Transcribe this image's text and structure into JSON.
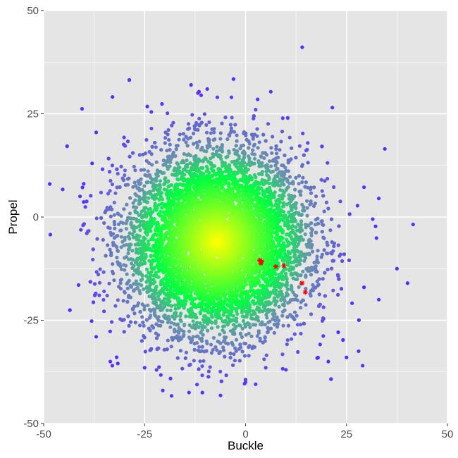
{
  "chart_data": {
    "type": "scatter",
    "title": "",
    "xlabel": "Buckle",
    "ylabel": "Propel",
    "xlim": [
      -50,
      50
    ],
    "ylim": [
      -50,
      50
    ],
    "x_ticks": [
      "-50",
      "-25",
      "0",
      "25",
      "50"
    ],
    "y_ticks": [
      "50",
      "25",
      "0",
      "-25",
      "-50"
    ],
    "grid": true,
    "legend": "none",
    "density_cloud": {
      "center": [
        -7,
        -6
      ],
      "spread": [
        11,
        11
      ],
      "count": 9000,
      "colors": {
        "core": "#ffff00",
        "middle": "#00ff40",
        "edge": "#6a8fb0",
        "outlier": "#5a2dff"
      }
    },
    "outlier_points": [
      {
        "x": -48.5,
        "y": 8
      },
      {
        "x": -40.5,
        "y": 26.2
      },
      {
        "x": -37,
        "y": 20.5
      },
      {
        "x": -13.5,
        "y": 32
      },
      {
        "x": -9.5,
        "y": 31
      },
      {
        "x": -7,
        "y": 29
      },
      {
        "x": -3.5,
        "y": 29
      },
      {
        "x": -11,
        "y": 29.5
      },
      {
        "x": 3,
        "y": 28.5
      },
      {
        "x": 21.5,
        "y": 26.5
      },
      {
        "x": 34.5,
        "y": 16.5
      },
      {
        "x": 41.5,
        "y": -1.8
      },
      {
        "x": 37.5,
        "y": -12.5
      },
      {
        "x": 29,
        "y": -36
      },
      {
        "x": 28,
        "y": -32.5
      },
      {
        "x": 20.5,
        "y": -35
      },
      {
        "x": 25,
        "y": -34
      },
      {
        "x": -14,
        "y": -42.5
      },
      {
        "x": -20.5,
        "y": -42
      },
      {
        "x": -33,
        "y": -36
      },
      {
        "x": -33.5,
        "y": -35
      },
      {
        "x": -37,
        "y": -29
      },
      {
        "x": -25,
        "y": -36.5
      },
      {
        "x": 2.5,
        "y": -40.5
      },
      {
        "x": 0,
        "y": -40
      },
      {
        "x": 10,
        "y": -37
      },
      {
        "x": 5,
        "y": -36.5
      },
      {
        "x": -41,
        "y": 5
      },
      {
        "x": -38,
        "y": 13
      },
      {
        "x": -33,
        "y": 12.5
      },
      {
        "x": 33,
        "y": 4.5
      },
      {
        "x": 31.5,
        "y": -0.5
      },
      {
        "x": 33,
        "y": -20
      }
    ],
    "highlight_points": [
      {
        "x": 3.5,
        "y": -10.5
      },
      {
        "x": 3.8,
        "y": -11.2
      },
      {
        "x": 4,
        "y": -10.8
      },
      {
        "x": 7.5,
        "y": -12
      },
      {
        "x": 9.5,
        "y": -11.8
      },
      {
        "x": 14,
        "y": -16
      },
      {
        "x": 14.8,
        "y": -18.2
      }
    ],
    "highlight_color": "#ff0000"
  }
}
